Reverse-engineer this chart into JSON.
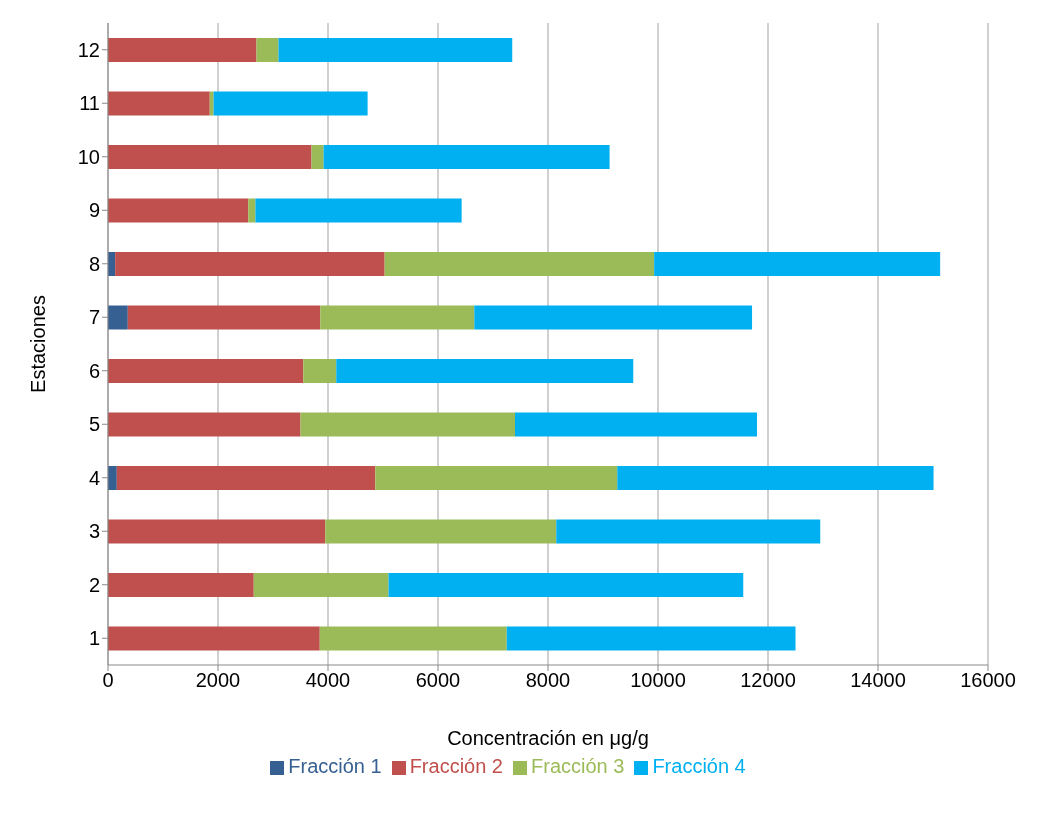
{
  "chart_data": {
    "type": "bar",
    "orientation": "horizontal",
    "stacked": true,
    "xlabel": "Concentración en μg/g",
    "ylabel": "Estaciones",
    "categories": [
      "12",
      "11",
      "10",
      "9",
      "8",
      "7",
      "6",
      "5",
      "4",
      "3",
      "2",
      "1"
    ],
    "series": [
      {
        "name": "Fracción 1",
        "color": "#376092",
        "values": [
          0,
          0,
          0,
          0,
          130,
          360,
          0,
          0,
          160,
          0,
          0,
          0
        ]
      },
      {
        "name": "Fracción 2",
        "color": "#c0504d",
        "values": [
          2700,
          1850,
          3700,
          2550,
          4900,
          3500,
          3550,
          3500,
          4700,
          3950,
          2650,
          3850
        ]
      },
      {
        "name": "Fracción 3",
        "color": "#9bbb59",
        "values": [
          400,
          70,
          220,
          130,
          4900,
          2800,
          600,
          3900,
          4400,
          4200,
          2450,
          3400
        ]
      },
      {
        "name": "Fracción 4",
        "color": "#00b0f0",
        "values": [
          4250,
          2800,
          5200,
          3750,
          5200,
          5050,
          5400,
          4400,
          5750,
          4800,
          6450,
          5250
        ]
      }
    ],
    "xlim": [
      0,
      16000
    ],
    "xticks": [
      0,
      2000,
      4000,
      6000,
      8000,
      10000,
      12000,
      14000,
      16000
    ],
    "grid": "x",
    "legend": "bottom"
  }
}
